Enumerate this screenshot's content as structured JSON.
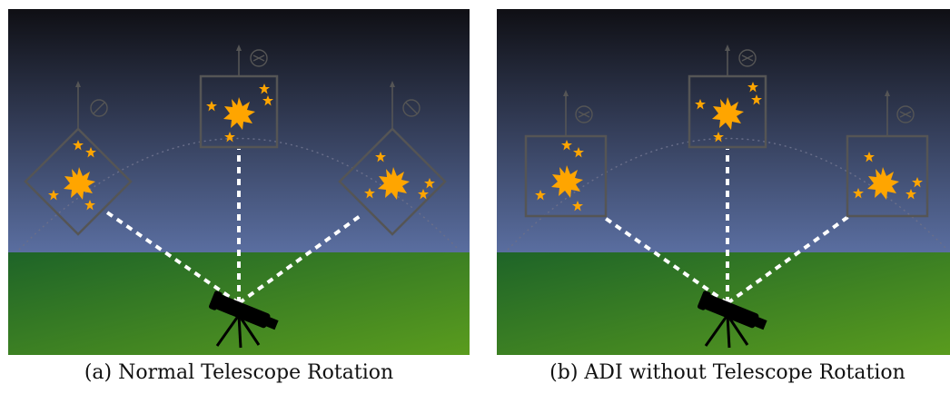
{
  "captions": {
    "a": "(a) Normal Telescope Rotation",
    "b": "(b) ADI without Telescope Rotation"
  },
  "colors": {
    "sky_top": "#0f0f14",
    "sky_bottom": "#5a6ea0",
    "ground_top": "#1e6428",
    "ground_bottom": "#5a9c1e",
    "star": "#ffa500",
    "frame": "#444444",
    "beam": "#ffffff",
    "telescope": "#000000"
  },
  "icons": {
    "telescope": "telescope-icon",
    "compass": "compass-icon",
    "north_arrow": "north-arrow-icon",
    "sun": "sun-burst-icon",
    "star": "star-icon"
  }
}
